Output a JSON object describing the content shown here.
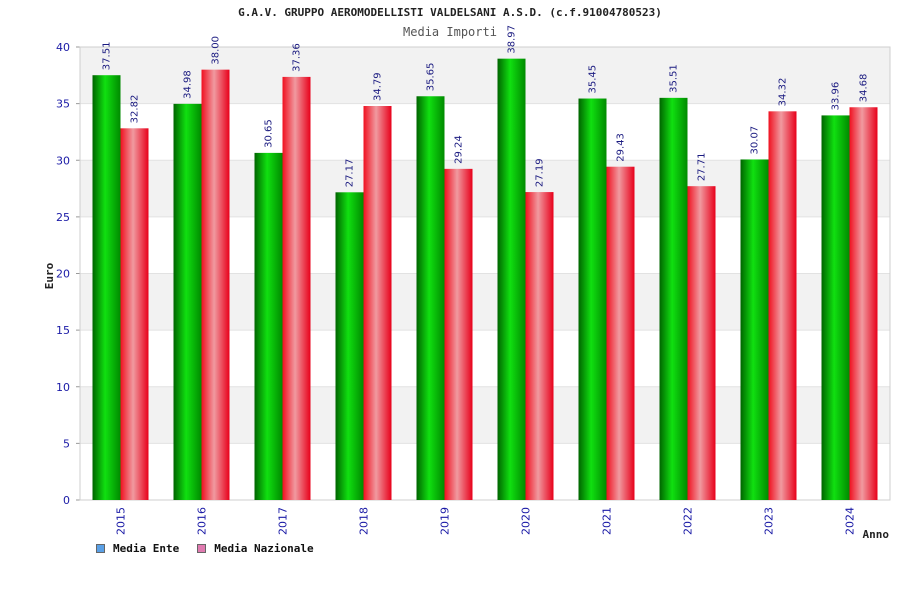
{
  "chart_data": {
    "type": "bar",
    "title": "G.A.V. GRUPPO AEROMODELLISTI VALDELSANI A.S.D. (c.f.91004780523)",
    "subtitle": "Media Importi",
    "xlabel": "Anno",
    "ylabel": "Euro",
    "ylim": [
      0,
      40
    ],
    "yticks": [
      0,
      5,
      10,
      15,
      20,
      25,
      30,
      35,
      40
    ],
    "grid": true,
    "legend_position": "bottom-left",
    "categories": [
      "2015",
      "2016",
      "2017",
      "2018",
      "2019",
      "2020",
      "2021",
      "2022",
      "2023",
      "2024"
    ],
    "series": [
      {
        "name": "Media Ente",
        "color": "#00b000",
        "legend_color": "#5aa0e6",
        "values": [
          37.51,
          34.98,
          30.65,
          27.17,
          35.65,
          38.97,
          35.45,
          35.51,
          30.07,
          33.96
        ],
        "labels": [
          "37.51",
          "34.98",
          "30.65",
          "27.17",
          "35.65",
          "38.97",
          "35.45",
          "35.51",
          "30.07",
          "33.96"
        ]
      },
      {
        "name": "Media Nazionale",
        "color": "#f01020",
        "legend_color": "#e07ab0",
        "values": [
          32.82,
          38.0,
          37.36,
          34.79,
          29.24,
          27.19,
          29.43,
          27.71,
          34.32,
          34.68
        ],
        "labels": [
          "32.82",
          "38.00",
          "37.36",
          "34.79",
          "29.24",
          "27.19",
          "29.43",
          "27.71",
          "34.32",
          "34.68"
        ]
      }
    ]
  }
}
